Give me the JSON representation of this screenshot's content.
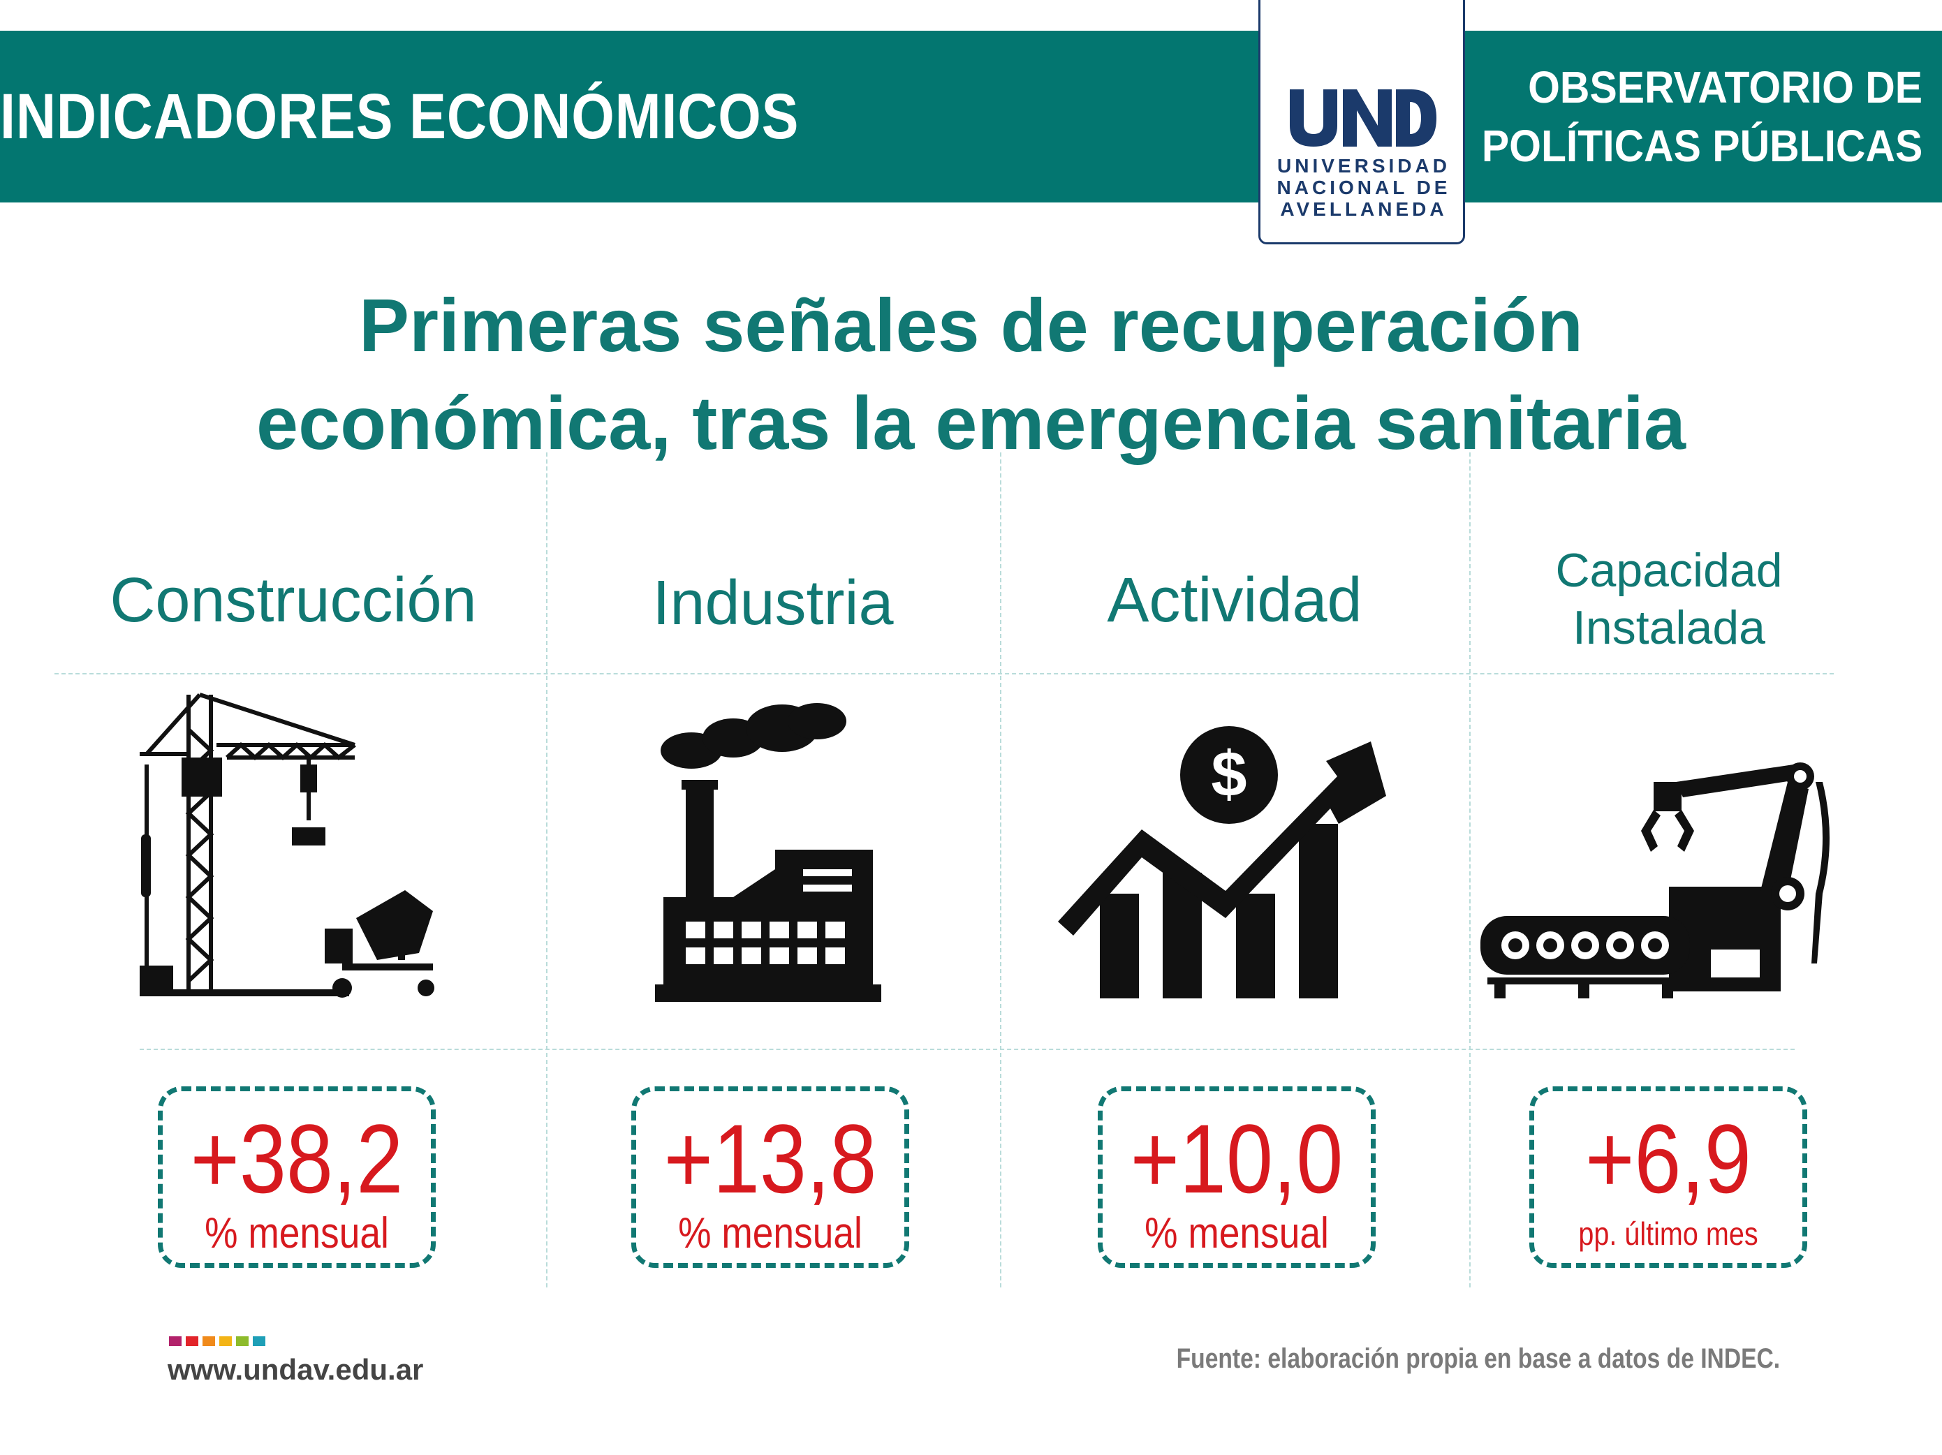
{
  "header": {
    "left_title": "INDICADORES ECONÓMICOS",
    "right_title_line1": "OBSERVATORIO DE",
    "right_title_line2": "POLÍTICAS PÚBLICAS",
    "logo": {
      "mark": "UNDAV",
      "line1": "UNIVERSIDAD",
      "line2": "NACIONAL DE",
      "line3": "AVELLANEDA",
      "color": "#1b3a6b"
    },
    "band_color": "#037670"
  },
  "title": {
    "line1": "Primeras señales de recuperación",
    "line2": "económica, tras la emergencia sanitaria"
  },
  "indicators": [
    {
      "label": "Construcción",
      "icon": "construction-crane-icon",
      "value": "+38,2",
      "unit": "% mensual"
    },
    {
      "label": "Industria",
      "icon": "factory-icon",
      "value": "+13,8",
      "unit": "% mensual"
    },
    {
      "label": "Actividad",
      "icon": "growth-chart-dollar-icon",
      "value": "+10,0",
      "unit": "% mensual"
    },
    {
      "label_line1": "Capacidad",
      "label_line2": "Instalada",
      "icon": "robotic-arm-conveyor-icon",
      "value": "+6,9",
      "unit": "pp. último mes"
    }
  ],
  "colors": {
    "accent": "#117873",
    "value": "#d7191e",
    "divider": "#b9dcda"
  },
  "footer": {
    "url": "www.undav.edu.ar",
    "source": "Fuente: elaboración propia en base a datos de INDEC.",
    "dot_colors": [
      "#b2226b",
      "#e2242a",
      "#f08a1b",
      "#f3b416",
      "#8dbb2c",
      "#1e9fb7"
    ]
  }
}
